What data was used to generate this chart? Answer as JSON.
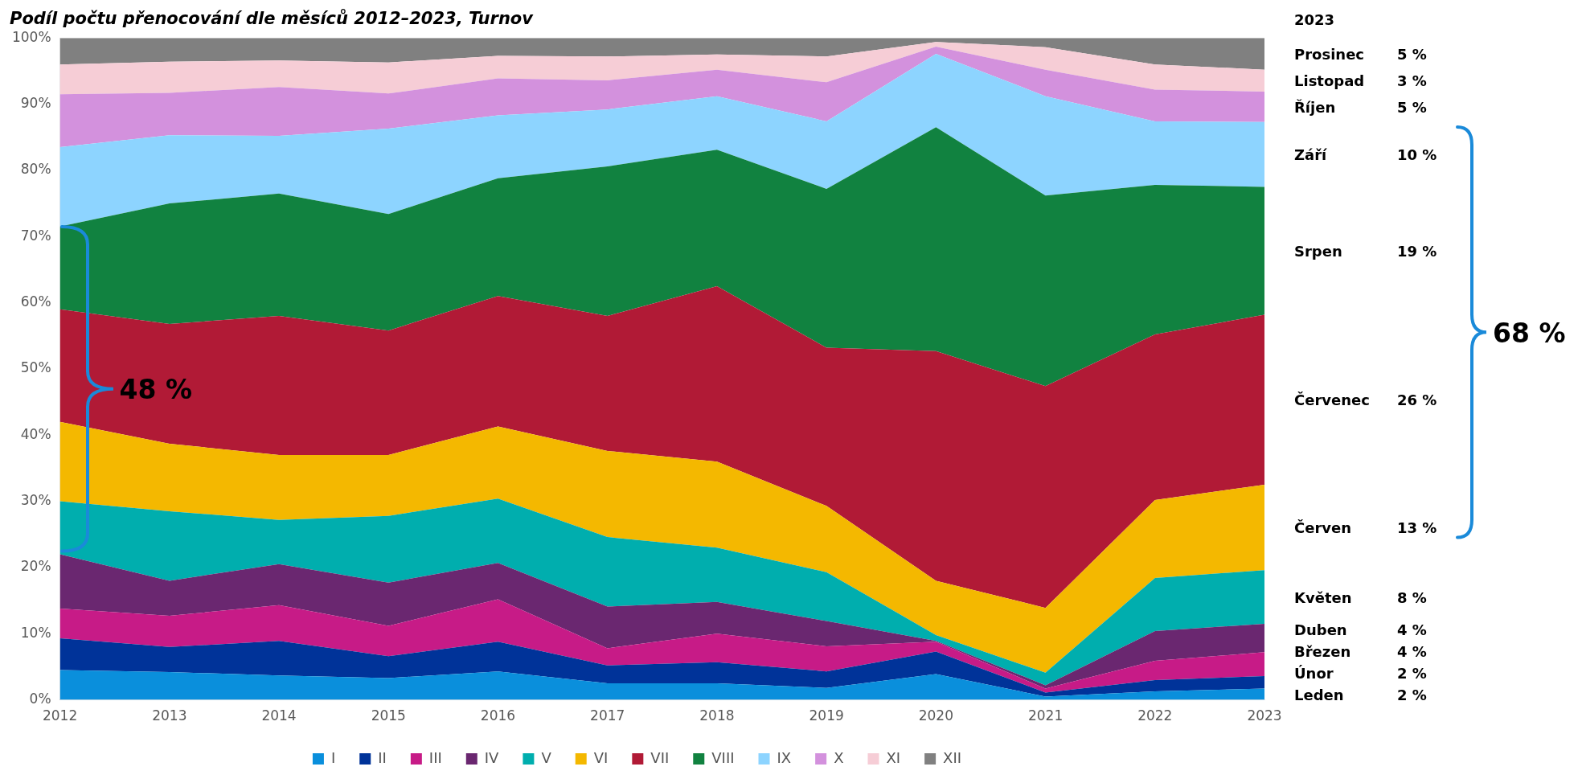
{
  "chart_data": {
    "type": "area",
    "stacked": true,
    "title": "Podíl počtu přenocování dle měsíců 2012–2023, Turnov",
    "categories": [
      "2012",
      "2013",
      "2014",
      "2015",
      "2016",
      "2017",
      "2018",
      "2019",
      "2020",
      "2021",
      "2022",
      "2023"
    ],
    "series": [
      {
        "name": "I",
        "color": "#0a8fdc",
        "values": [
          4.5,
          4.2,
          3.7,
          3.3,
          4.3,
          2.5,
          2.5,
          1.8,
          3.9,
          0.5,
          1.3,
          1.7
        ]
      },
      {
        "name": "II",
        "color": "#003399",
        "values": [
          4.8,
          3.8,
          5.2,
          3.3,
          4.5,
          2.7,
          3.2,
          2.5,
          3.4,
          0.6,
          1.7,
          1.9
        ]
      },
      {
        "name": "III",
        "color": "#c71b87",
        "values": [
          4.5,
          4.7,
          5.4,
          4.6,
          6.4,
          2.6,
          4.3,
          3.8,
          1.5,
          0.6,
          2.9,
          3.6
        ]
      },
      {
        "name": "IV",
        "color": "#6a2770",
        "values": [
          8.2,
          5.3,
          6.2,
          6.5,
          5.5,
          6.3,
          4.8,
          3.8,
          0.1,
          0.5,
          4.5,
          4.3
        ]
      },
      {
        "name": "V",
        "color": "#00aeae",
        "values": [
          8,
          10.5,
          6.7,
          10.1,
          9.7,
          10.5,
          8.2,
          7.4,
          0.9,
          1.9,
          8,
          8.1
        ]
      },
      {
        "name": "VI",
        "color": "#f4b800",
        "values": [
          12,
          10.2,
          9.8,
          9.2,
          10.9,
          13,
          13,
          10,
          8.2,
          9.8,
          11.8,
          12.9
        ]
      },
      {
        "name": "VII",
        "color": "#b11a36",
        "values": [
          17,
          18.1,
          21,
          18.8,
          19.7,
          20.4,
          26.5,
          23.9,
          34.7,
          33.5,
          25,
          25.7
        ]
      },
      {
        "name": "VIII",
        "color": "#118240",
        "values": [
          12.5,
          18.2,
          18.5,
          17.6,
          17.8,
          22.6,
          20.6,
          24,
          33.8,
          28.8,
          22.6,
          19.3
        ]
      },
      {
        "name": "IX",
        "color": "#8dd4ff",
        "values": [
          12,
          10.3,
          8.7,
          12.9,
          9.5,
          8.6,
          8.1,
          10.2,
          11.1,
          15,
          9.6,
          9.8
        ]
      },
      {
        "name": "X",
        "color": "#d391dd",
        "values": [
          8,
          6.4,
          7.4,
          5.3,
          5.6,
          4.4,
          4,
          5.9,
          1.1,
          4,
          4.8,
          4.6
        ]
      },
      {
        "name": "XI",
        "color": "#f6cdd6",
        "values": [
          4.5,
          4.7,
          4,
          4.7,
          3.4,
          3.6,
          2.3,
          3.9,
          0.7,
          3.4,
          3.8,
          3.3
        ]
      },
      {
        "name": "XII",
        "color": "#808080",
        "values": [
          4,
          3.6,
          3.4,
          3.7,
          2.7,
          2.8,
          2.5,
          2.8,
          0.6,
          1.4,
          4,
          4.8
        ]
      }
    ],
    "ylim": [
      0,
      100
    ],
    "yticks": [
      {
        "value": 0,
        "label": "0%"
      },
      {
        "value": 10,
        "label": "10%"
      },
      {
        "value": 20,
        "label": "20%"
      },
      {
        "value": 30,
        "label": "30%"
      },
      {
        "value": 40,
        "label": "40%"
      },
      {
        "value": 50,
        "label": "50%"
      },
      {
        "value": 60,
        "label": "60%"
      },
      {
        "value": 70,
        "label": "70%"
      },
      {
        "value": 80,
        "label": "80%"
      },
      {
        "value": 90,
        "label": "90%"
      },
      {
        "value": 100,
        "label": "100%"
      }
    ],
    "grid": false,
    "legend": "bottom",
    "annotations": [
      "2023",
      "Prosinec 5 %",
      "Listopad 3 %",
      "Říjen 5 %",
      "Září 10 %",
      "Srpen 19 %",
      "Červenec 26 %",
      "Červen 13 %",
      "Květen 8 %",
      "Duben 4 %",
      "Březen 4 %",
      "Únor 2 %",
      "Leden 2 %",
      {
        "text": "48 %",
        "x": "2012",
        "y": 47
      },
      "68 %"
    ]
  }
}
